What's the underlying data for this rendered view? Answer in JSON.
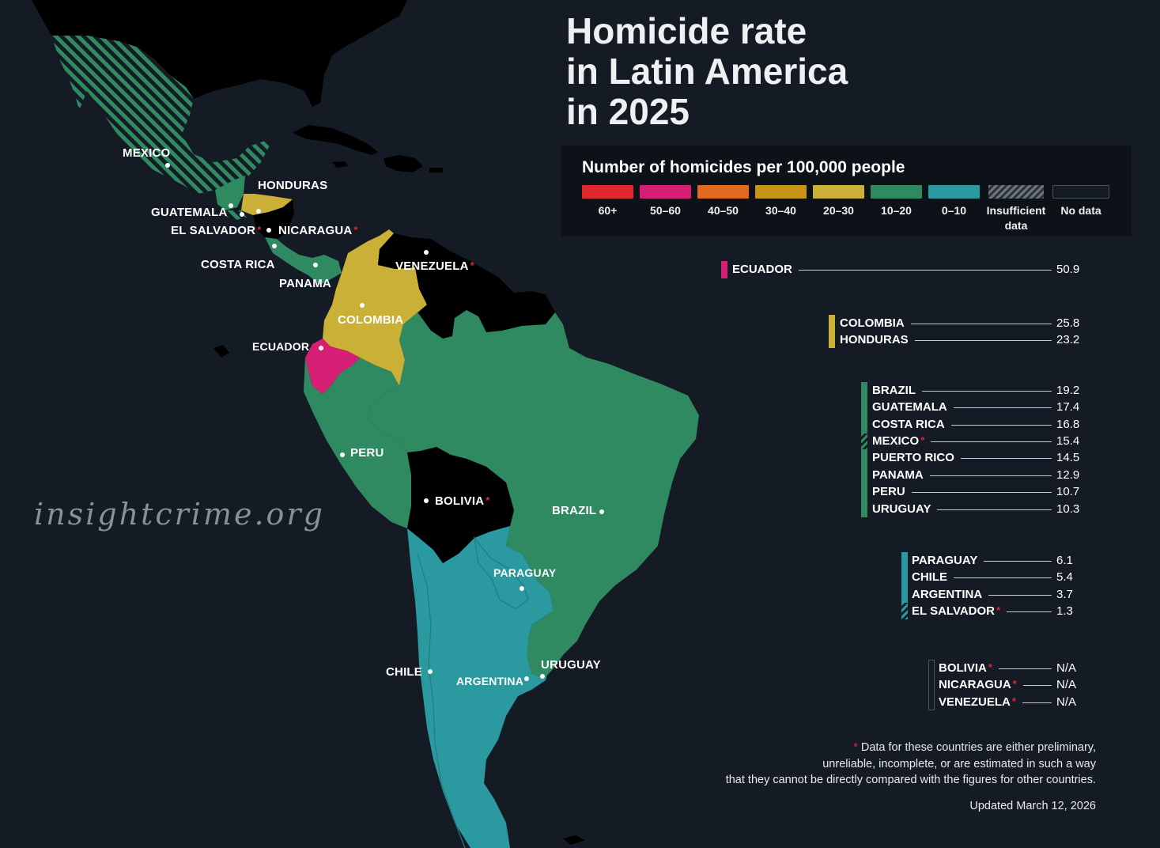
{
  "title_lines": [
    "Homicide rate",
    "in Latin America",
    "in 2025"
  ],
  "watermark": "insightcrime.org",
  "legend": {
    "title": "Number of homicides per 100,000 people",
    "items": [
      {
        "label": "60+",
        "color": "#e0262e"
      },
      {
        "label": "50–60",
        "color": "#d41f74"
      },
      {
        "label": "40–50",
        "color": "#e0681f"
      },
      {
        "label": "30–40",
        "color": "#c79514"
      },
      {
        "label": "20–30",
        "color": "#cbb037"
      },
      {
        "label": "10–20",
        "color": "#2f8a61"
      },
      {
        "label": "0–10",
        "color": "#2a9aa0"
      },
      {
        "label": "Insufficient data",
        "color": "hatched"
      },
      {
        "label": "No data",
        "color": "#141b24"
      }
    ]
  },
  "colors": {
    "ecuador": "#d41f74",
    "yellow": "#cbb037",
    "green": "#2f8a61",
    "teal": "#2a9aa0",
    "nodata": "#000000",
    "background": "#141b24"
  },
  "map_labels": {
    "mexico": "MEXICO",
    "honduras": "HONDURAS",
    "guatemala": "GUATEMALA",
    "el_salvador": "EL SALVADOR",
    "nicaragua": "NICARAGUA",
    "costa_rica": "COSTA RICA",
    "panama": "PANAMA",
    "venezuela": "VENEZUELA",
    "colombia": "COLOMBIA",
    "ecuador": "ECUADOR",
    "peru": "PERU",
    "bolivia": "BOLIVIA",
    "brazil": "BRAZIL",
    "paraguay": "PARAGUAY",
    "chile": "CHILE",
    "argentina": "ARGENTINA",
    "uruguay": "URUGUAY",
    "star": "*"
  },
  "ranking": {
    "ecuador": {
      "country": "ECUADOR",
      "value": "50.9"
    },
    "colombia": {
      "country": "COLOMBIA",
      "value": "25.8"
    },
    "honduras": {
      "country": "HONDURAS",
      "value": "23.2"
    },
    "brazil": {
      "country": "BRAZIL",
      "value": "19.2"
    },
    "guatemala": {
      "country": "GUATEMALA",
      "value": "17.4"
    },
    "costa_rica": {
      "country": "COSTA RICA",
      "value": "16.8"
    },
    "mexico": {
      "country": "MEXICO",
      "value": "15.4"
    },
    "puerto_rico": {
      "country": "PUERTO RICO",
      "value": "14.5"
    },
    "panama": {
      "country": "PANAMA",
      "value": "12.9"
    },
    "peru": {
      "country": "PERU",
      "value": "10.7"
    },
    "uruguay": {
      "country": "URUGUAY",
      "value": "10.3"
    },
    "paraguay": {
      "country": "PARAGUAY",
      "value": "6.1"
    },
    "chile": {
      "country": "CHILE",
      "value": "5.4"
    },
    "argentina": {
      "country": "ARGENTINA",
      "value": "3.7"
    },
    "el_salvador": {
      "country": "EL SALVADOR",
      "value": "1.3"
    },
    "bolivia": {
      "country": "BOLIVIA",
      "value": "N/A"
    },
    "nicaragua": {
      "country": "NICARAGUA",
      "value": "N/A"
    },
    "venezuela": {
      "country": "VENEZUELA",
      "value": "N/A"
    }
  },
  "footnote": {
    "star": "*",
    "line1": " Data for these countries are either preliminary,",
    "line2": "unreliable, incomplete, or are estimated in such a way",
    "line3": "that they cannot be directly compared with the figures for other countries."
  },
  "updated": "Updated March 12, 2026"
}
